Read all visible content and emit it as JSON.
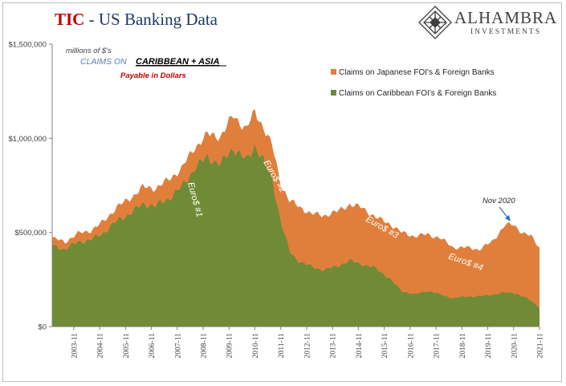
{
  "header": {
    "title_main": "TIC",
    "title_sub": " - US Banking Data",
    "logo_name": "ALHAMBRA",
    "logo_sub": "INVESTMENTS",
    "logo_icon": "diamond-lattice-icon"
  },
  "colors": {
    "japanese": "#e07f3c",
    "caribbean": "#6f8b36",
    "title_red": "#c00000",
    "annotation_blue": "#4f81bd",
    "annotation_red": "#c00000",
    "arrow": "#2e75b6"
  },
  "chart_data": {
    "type": "area",
    "stacked": true,
    "units": "millions of $'s",
    "title_line1_prefix": "CLAIMS ON",
    "title_line1_emph": "CARIBBEAN + ASIA",
    "title_line2": "Payable in Dollars",
    "ylim": [
      0,
      1500000
    ],
    "y_ticks": [
      0,
      500000,
      1000000,
      1500000
    ],
    "y_tick_labels": [
      "$0",
      "$500,000",
      "$1,000,000",
      "$1,500,000"
    ],
    "x_tick_labels": [
      "2003-11",
      "2004-11",
      "2005-11",
      "2006-11",
      "2007-11",
      "2008-11",
      "2009-11",
      "2010-11",
      "2011-11",
      "2012-11",
      "2013-11",
      "2014-11",
      "2015-11",
      "2016-11",
      "2017-11",
      "2018-11",
      "2019-11",
      "2020-11",
      "2021-11"
    ],
    "x_range": [
      "2003-01",
      "2021-11"
    ],
    "grid": false,
    "legend_position": "right",
    "x": [
      "2003-01",
      "2003-07",
      "2004-01",
      "2004-07",
      "2005-01",
      "2005-07",
      "2006-01",
      "2006-07",
      "2007-01",
      "2007-07",
      "2008-01",
      "2008-07",
      "2009-01",
      "2009-07",
      "2010-01",
      "2010-07",
      "2010-11",
      "2011-03",
      "2011-07",
      "2011-11",
      "2012-03",
      "2012-07",
      "2013-01",
      "2013-07",
      "2014-01",
      "2014-07",
      "2015-01",
      "2015-07",
      "2016-01",
      "2016-07",
      "2017-01",
      "2017-07",
      "2018-01",
      "2018-07",
      "2019-01",
      "2019-07",
      "2020-01",
      "2020-07",
      "2020-11",
      "2021-03",
      "2021-07",
      "2021-11"
    ],
    "series": [
      {
        "name": "Claims on Japanese FOI's & Foreign Banks",
        "values": [
          40000,
          40000,
          45000,
          50000,
          60000,
          75000,
          80000,
          90000,
          95000,
          100000,
          100000,
          110000,
          120000,
          150000,
          170000,
          170000,
          180000,
          180000,
          180000,
          200000,
          270000,
          290000,
          280000,
          290000,
          290000,
          300000,
          300000,
          270000,
          290000,
          310000,
          310000,
          300000,
          300000,
          270000,
          260000,
          250000,
          280000,
          360000,
          360000,
          340000,
          340000,
          320000
        ]
      },
      {
        "name": "Claims on Caribbean FOI's & Foreign Banks",
        "values": [
          430000,
          410000,
          450000,
          460000,
          500000,
          560000,
          600000,
          650000,
          640000,
          680000,
          740000,
          840000,
          900000,
          860000,
          950000,
          880000,
          960000,
          880000,
          780000,
          560000,
          400000,
          350000,
          320000,
          300000,
          320000,
          350000,
          330000,
          310000,
          260000,
          190000,
          170000,
          190000,
          170000,
          150000,
          160000,
          160000,
          170000,
          180000,
          180000,
          160000,
          140000,
          100000
        ]
      }
    ]
  },
  "annotations": {
    "units": "millions of $'s",
    "euro1": "Euro$ #1",
    "euro2": "Euro$ #2",
    "euro3": "Euro$ #3",
    "euro4": "Euro$ #4",
    "nov2020": "Nov 2020"
  }
}
